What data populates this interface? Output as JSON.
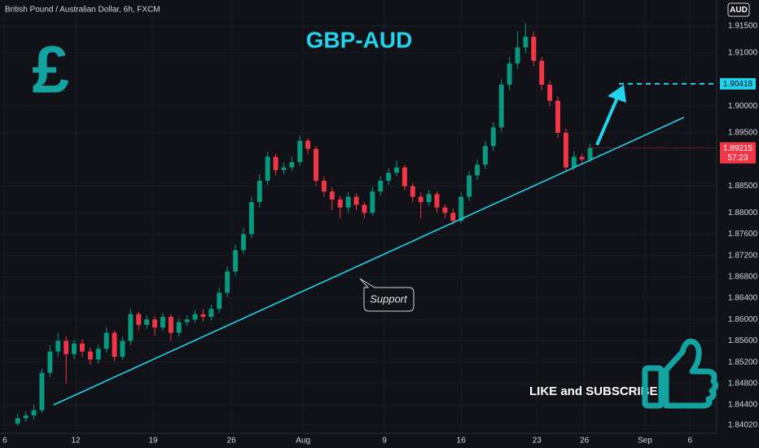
{
  "chart_data": {
    "type": "candlestick",
    "symbol": "British Pound / Australian Dollar, 6h, FXCM",
    "currency": "AUD",
    "title": "GBP-AUD",
    "icon": "£",
    "annotation": "Support",
    "call_to_action": "LIKE and SUBSCRIBE",
    "up_color": "#089981",
    "down_color": "#f23645",
    "open": [
      1.8405,
      1.8415,
      1.842,
      1.843,
      1.85,
      1.854,
      1.856,
      1.8535,
      1.8555,
      1.854,
      1.8525,
      1.8545,
      1.8575,
      1.853,
      1.856,
      1.861,
      1.859,
      1.86,
      1.8585,
      1.8605,
      1.8575,
      1.8595,
      1.86,
      1.861,
      1.8605,
      1.862,
      1.865,
      1.869,
      1.873,
      1.876,
      1.882,
      1.886,
      1.8905,
      1.888,
      1.8885,
      1.8895,
      1.8935,
      1.892,
      1.886,
      1.884,
      1.8825,
      1.881,
      1.883,
      1.8815,
      1.88,
      1.884,
      1.886,
      1.8875,
      1.8885,
      1.885,
      1.883,
      1.882,
      1.8835,
      1.881,
      1.88,
      1.8785,
      1.883,
      1.887,
      1.889,
      1.8925,
      1.896,
      1.904,
      1.908,
      1.911,
      1.913,
      1.9085,
      1.904,
      1.901,
      1.895,
      1.8885,
      1.8905,
      1.89
    ],
    "high": [
      1.8423,
      1.8428,
      1.844,
      1.8508,
      1.8552,
      1.8575,
      1.8568,
      1.8562,
      1.8563,
      1.8548,
      1.8553,
      1.8585,
      1.858,
      1.8568,
      1.862,
      1.8615,
      1.8608,
      1.8606,
      1.8612,
      1.861,
      1.8602,
      1.8608,
      1.8618,
      1.862,
      1.8628,
      1.866,
      1.87,
      1.874,
      1.8772,
      1.883,
      1.8872,
      1.8915,
      1.891,
      1.8895,
      1.8905,
      1.8945,
      1.894,
      1.8925,
      1.8868,
      1.8848,
      1.8832,
      1.8838,
      1.8836,
      1.882,
      1.8848,
      1.8868,
      1.8883,
      1.8898,
      1.889,
      1.8856,
      1.8838,
      1.8843,
      1.884,
      1.8816,
      1.8808,
      1.8838,
      1.8878,
      1.89,
      1.8935,
      1.897,
      1.905,
      1.9092,
      1.914,
      1.9155,
      1.914,
      1.9092,
      1.9048,
      1.9018,
      1.8958,
      1.8915,
      1.8912,
      1.893
    ],
    "low": [
      1.84,
      1.8408,
      1.8412,
      1.8425,
      1.8492,
      1.853,
      1.848,
      1.8525,
      1.853,
      1.8515,
      1.8518,
      1.8538,
      1.8522,
      1.8524,
      1.8552,
      1.858,
      1.8582,
      1.857,
      1.8578,
      1.856,
      1.8568,
      1.8588,
      1.8594,
      1.8596,
      1.8598,
      1.8612,
      1.8642,
      1.8682,
      1.8722,
      1.8752,
      1.881,
      1.8852,
      1.887,
      1.8872,
      1.8878,
      1.8888,
      1.891,
      1.885,
      1.883,
      1.8805,
      1.879,
      1.88,
      1.8805,
      1.879,
      1.8795,
      1.8832,
      1.8852,
      1.8868,
      1.8842,
      1.882,
      1.879,
      1.8812,
      1.88,
      1.879,
      1.8778,
      1.878,
      1.8822,
      1.8862,
      1.8882,
      1.8916,
      1.8952,
      1.903,
      1.907,
      1.91,
      1.9075,
      1.903,
      1.9,
      1.894,
      1.8878,
      1.888,
      1.889,
      1.8895
    ],
    "close": [
      1.8415,
      1.842,
      1.843,
      1.85,
      1.854,
      1.856,
      1.8535,
      1.8555,
      1.854,
      1.8525,
      1.8545,
      1.8575,
      1.853,
      1.856,
      1.861,
      1.859,
      1.86,
      1.8585,
      1.8605,
      1.8575,
      1.8595,
      1.86,
      1.861,
      1.8605,
      1.862,
      1.865,
      1.869,
      1.873,
      1.876,
      1.882,
      1.886,
      1.8905,
      1.888,
      1.8885,
      1.8895,
      1.8935,
      1.892,
      1.886,
      1.884,
      1.8825,
      1.881,
      1.883,
      1.8815,
      1.88,
      1.884,
      1.886,
      1.8875,
      1.8885,
      1.885,
      1.883,
      1.882,
      1.8835,
      1.881,
      1.88,
      1.8785,
      1.883,
      1.887,
      1.889,
      1.8925,
      1.896,
      1.904,
      1.908,
      1.911,
      1.913,
      1.9085,
      1.904,
      1.901,
      1.895,
      1.8885,
      1.8905,
      1.89,
      1.89215
    ],
    "xlim": [
      -2.2,
      86.7
    ],
    "xticks": [
      {
        "value": -1.6,
        "label": "6"
      },
      {
        "value": 7.2,
        "label": "12"
      },
      {
        "value": 16.8,
        "label": "19"
      },
      {
        "value": 26.5,
        "label": "26"
      },
      {
        "value": 35.4,
        "label": "Aug"
      },
      {
        "value": 45.5,
        "label": "9"
      },
      {
        "value": 55,
        "label": "16"
      },
      {
        "value": 64.4,
        "label": "23"
      },
      {
        "value": 70.3,
        "label": "26"
      },
      {
        "value": 77.8,
        "label": "Sep"
      },
      {
        "value": 83.4,
        "label": "6"
      }
    ],
    "ylim": [
      1.83866,
      1.91989
    ],
    "yticks": [
      {
        "value": 1.915,
        "label": "1.91500"
      },
      {
        "value": 1.91,
        "label": "1.91000"
      },
      {
        "value": 1.9,
        "label": "1.90000"
      },
      {
        "value": 1.895,
        "label": "1.89500"
      },
      {
        "value": 1.885,
        "label": "1.88500"
      },
      {
        "value": 1.88,
        "label": "1.88000"
      },
      {
        "value": 1.876,
        "label": "1.87600"
      },
      {
        "value": 1.872,
        "label": "1.87200"
      },
      {
        "value": 1.868,
        "label": "1.86800"
      },
      {
        "value": 1.864,
        "label": "1.86400"
      },
      {
        "value": 1.86,
        "label": "1.86000"
      },
      {
        "value": 1.856,
        "label": "1.85600"
      },
      {
        "value": 1.852,
        "label": "1.85200"
      },
      {
        "value": 1.848,
        "label": "1.84800"
      },
      {
        "value": 1.844,
        "label": "1.84400"
      },
      {
        "value": 1.8402,
        "label": "1.84020"
      }
    ],
    "target": {
      "value": 1.90418,
      "label": "1.90418",
      "color": "#22d3ee"
    },
    "last_price": {
      "value": 1.89215,
      "label": "1.89215",
      "countdown": "57:23",
      "color": "#f23645"
    }
  }
}
